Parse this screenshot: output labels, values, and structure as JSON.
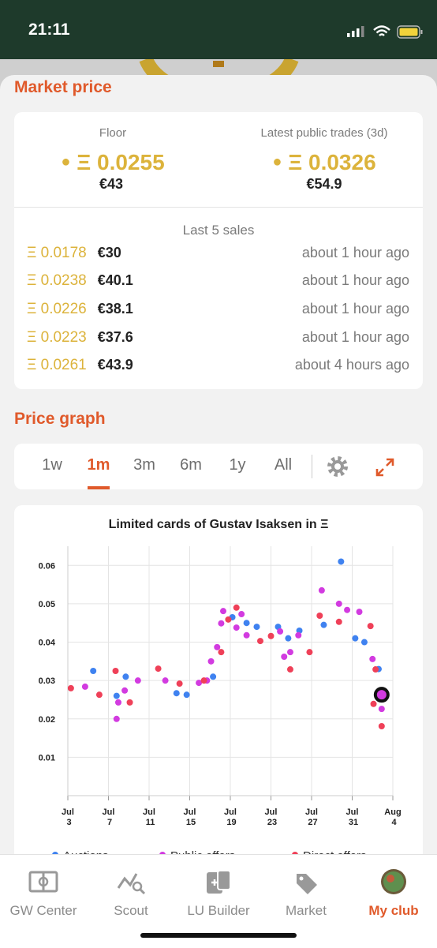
{
  "status_bar": {
    "time": "21:11"
  },
  "market_price": {
    "title": "Market price",
    "floor": {
      "label": "Floor",
      "eth": "Ξ 0.0255",
      "eur": "€43"
    },
    "latest": {
      "label": "Latest public trades (3d)",
      "eth": "Ξ 0.0326",
      "eur": "€54.9"
    },
    "last_sales": {
      "title": "Last 5 sales",
      "rows": [
        [
          "Ξ 0.0178",
          "€30",
          "about 1 hour ago"
        ],
        [
          "Ξ 0.0238",
          "€40.1",
          "about 1 hour ago"
        ],
        [
          "Ξ 0.0226",
          "€38.1",
          "about 1 hour ago"
        ],
        [
          "Ξ 0.0223",
          "€37.6",
          "about 1 hour ago"
        ],
        [
          "Ξ 0.0261",
          "€43.9",
          "about 4 hours ago"
        ]
      ]
    }
  },
  "price_graph": {
    "title": "Price graph",
    "tabs": [
      "1w",
      "1m",
      "3m",
      "6m",
      "1y",
      "All"
    ],
    "active_tab": 1
  },
  "chart_data": {
    "type": "scatter",
    "title": "Limited cards of Gustav Isaksen in Ξ",
    "xlim": [
      3,
      35
    ],
    "ylim": [
      0,
      0.065
    ],
    "xticks": [
      {
        "value": 3,
        "label": "Jul 3"
      },
      {
        "value": 7,
        "label": "Jul 7"
      },
      {
        "value": 11,
        "label": "Jul 11"
      },
      {
        "value": 15,
        "label": "Jul 15"
      },
      {
        "value": 19,
        "label": "Jul 19"
      },
      {
        "value": 23,
        "label": "Jul 23"
      },
      {
        "value": 27,
        "label": "Jul 27"
      },
      {
        "value": 31,
        "label": "Jul 31"
      },
      {
        "value": 35,
        "label": "Aug 4"
      }
    ],
    "yticks": [
      0.01,
      0.02,
      0.03,
      0.04,
      0.05,
      0.06
    ],
    "grid": true,
    "series": [
      {
        "name": "Auctions",
        "color": "#3f82f0",
        "x": [
          5.5,
          7.8,
          8.7,
          13.7,
          14.7,
          17.3,
          19.2,
          20.6,
          21.6,
          23.7,
          24.7,
          25.8,
          28.2,
          29.9,
          31.3,
          32.2,
          33.6
        ],
        "values": [
          0.0325,
          0.026,
          0.031,
          0.0267,
          0.0263,
          0.031,
          0.0465,
          0.045,
          0.044,
          0.044,
          0.041,
          0.043,
          0.0445,
          0.061,
          0.041,
          0.04,
          0.033
        ]
      },
      {
        "name": "Public offers",
        "color": "#d23be0",
        "x": [
          4.7,
          7.8,
          7.97,
          8.6,
          9.9,
          12.6,
          15.9,
          16.7,
          17.1,
          17.7,
          18.1,
          18.3,
          19.6,
          20.1,
          20.6,
          23.9,
          24.3,
          24.9,
          25.7,
          28.0,
          29.7,
          30.5,
          31.7,
          33.0,
          33.9,
          33.9
        ],
        "values": [
          0.0284,
          0.02,
          0.0243,
          0.0274,
          0.03,
          0.03,
          0.0294,
          0.03,
          0.035,
          0.0387,
          0.0449,
          0.0481,
          0.0438,
          0.0473,
          0.0418,
          0.0428,
          0.0362,
          0.0374,
          0.0418,
          0.0535,
          0.05,
          0.0484,
          0.0479,
          0.0356,
          0.0226,
          0.0263
        ]
      },
      {
        "name": "Direct offers",
        "color": "#ef4058",
        "x": [
          3.3,
          6.1,
          7.7,
          9.1,
          11.9,
          14.0,
          16.4,
          18.1,
          18.8,
          19.6,
          21.95,
          23.0,
          24.9,
          26.8,
          27.8,
          29.7,
          32.8,
          33.3,
          33.1,
          33.9
        ],
        "values": [
          0.028,
          0.0263,
          0.0325,
          0.0243,
          0.0331,
          0.0292,
          0.03,
          0.0374,
          0.0459,
          0.049,
          0.0403,
          0.0416,
          0.0329,
          0.0374,
          0.0469,
          0.0453,
          0.0442,
          0.0329,
          0.0239,
          0.0181
        ]
      }
    ]
  },
  "nav": {
    "items": [
      "GW Center",
      "Scout",
      "LU Builder",
      "Market",
      "My club"
    ],
    "active": 4
  }
}
